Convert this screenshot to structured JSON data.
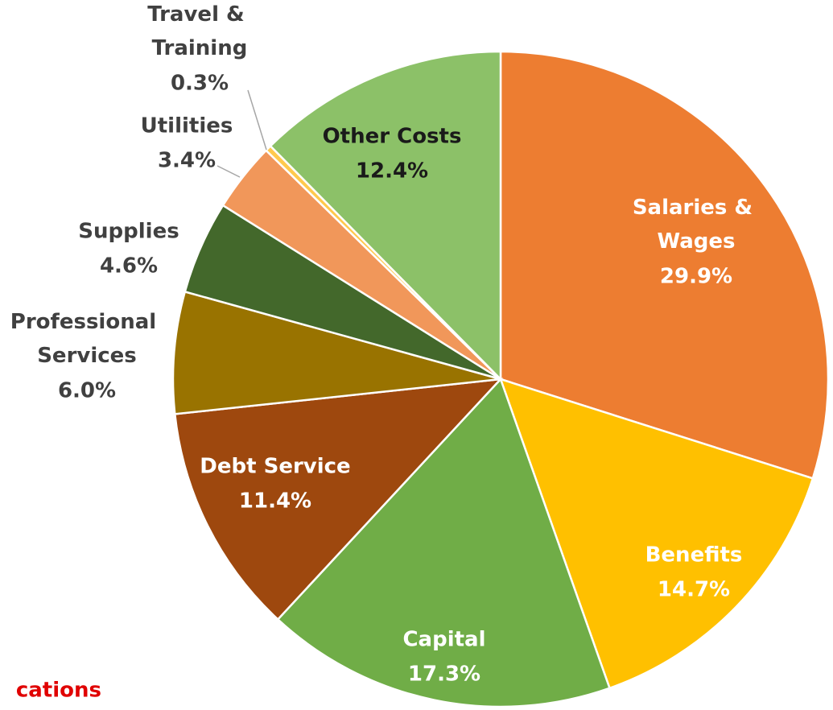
{
  "chart_data": {
    "type": "pie",
    "categories": [
      "Salaries & Wages",
      "Benefits",
      "Capital",
      "Debt Service",
      "Professional Services",
      "Supplies",
      "Utilities",
      "Travel & Training",
      "Other Costs"
    ],
    "values": [
      29.9,
      14.7,
      17.3,
      11.4,
      6.0,
      4.6,
      3.4,
      0.3,
      12.4
    ],
    "value_labels": [
      "29.9%",
      "14.7%",
      "17.3%",
      "11.4%",
      "6.0%",
      "4.6%",
      "3.4%",
      "0.3%",
      "12.4%"
    ],
    "colors": [
      "#ED7D31",
      "#FFC000",
      "#70AD47",
      "#9E480E",
      "#997300",
      "#43682B",
      "#F1975A",
      "#FFC94D",
      "#8CC168"
    ],
    "footer_text": "cations"
  }
}
